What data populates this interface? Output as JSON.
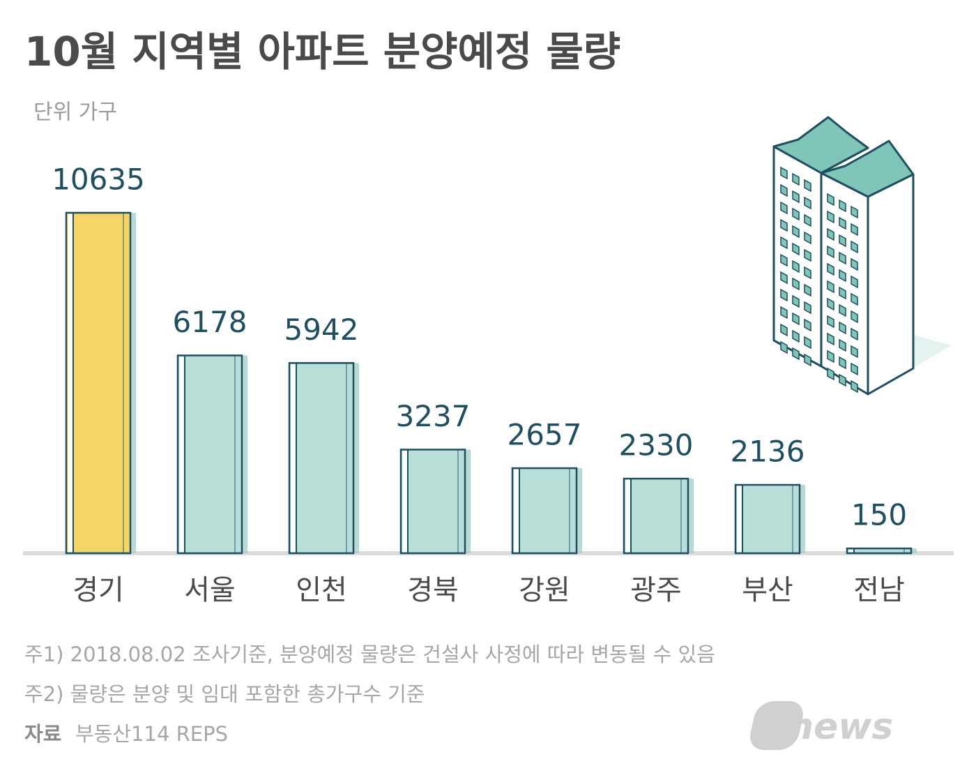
{
  "chart_data": {
    "type": "bar",
    "title": "10월 지역별 아파트 분양예정 물량",
    "subtitle": "단위 가구",
    "categories": [
      "경기",
      "서울",
      "인천",
      "경북",
      "강원",
      "광주",
      "부산",
      "전남"
    ],
    "values": [
      10635,
      6178,
      5942,
      3237,
      2657,
      2330,
      2136,
      150
    ],
    "colors": [
      "#f5d565",
      "#b8e0d8",
      "#b8e0d8",
      "#b8e0d8",
      "#b8e0d8",
      "#b8e0d8",
      "#b8e0d8",
      "#b8e0d8"
    ],
    "notes": [
      "주1) 2018.08.02 조사기준, 분양예정 물량은 건설사 사정에 따라 변동될 수 있음",
      "주2) 물량은 분양 및 임대 포함한 총가구수 기준"
    ],
    "source_label": "자료",
    "source": "부동산114 REPS"
  },
  "logo": {
    "text": "news",
    "mark": "1"
  }
}
